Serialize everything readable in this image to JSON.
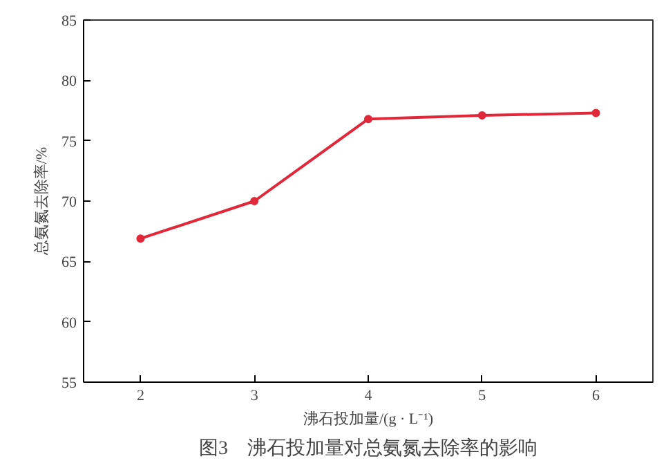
{
  "chart_data": {
    "type": "line",
    "xlabel": "沸石投加量/(g · L⁻¹)",
    "ylabel": "总氨氮去除率/%",
    "annotations": [
      "图3　沸石投加量对总氨氮去除率的影响"
    ],
    "x": [
      2,
      3,
      4,
      5,
      6
    ],
    "series": [
      {
        "color": "#e0283a",
        "values": [
          66.9,
          70.0,
          76.8,
          77.1,
          77.3
        ]
      }
    ],
    "xlim": [
      1.5,
      6.5
    ],
    "ylim": [
      55,
      85
    ],
    "xticks": [
      2,
      3,
      4,
      5,
      6
    ],
    "yticks": [
      55,
      60,
      65,
      70,
      75,
      80,
      85
    ],
    "marker": "circle",
    "line_style": "solid",
    "grid": false
  }
}
